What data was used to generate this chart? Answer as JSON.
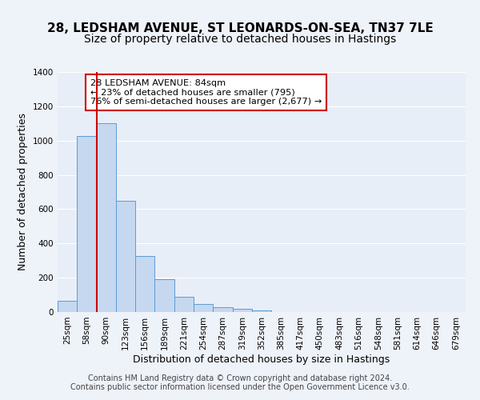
{
  "title_line1": "28, LEDSHAM AVENUE, ST LEONARDS-ON-SEA, TN37 7LE",
  "title_line2": "Size of property relative to detached houses in Hastings",
  "xlabel": "Distribution of detached houses by size in Hastings",
  "ylabel": "Number of detached properties",
  "bar_values": [
    65,
    1025,
    1100,
    650,
    325,
    190,
    90,
    45,
    30,
    20,
    10,
    0,
    0,
    0,
    0,
    0,
    0,
    0,
    0,
    0,
    0
  ],
  "categories": [
    "25sqm",
    "58sqm",
    "90sqm",
    "123sqm",
    "156sqm",
    "189sqm",
    "221sqm",
    "254sqm",
    "287sqm",
    "319sqm",
    "352sqm",
    "385sqm",
    "417sqm",
    "450sqm",
    "483sqm",
    "516sqm",
    "548sqm",
    "581sqm",
    "614sqm",
    "646sqm",
    "679sqm"
  ],
  "bar_color": "#c5d8f0",
  "bar_edge_color": "#5b9bd5",
  "vline_x": 1.5,
  "vline_color": "#cc0000",
  "annotation_line1": "28 LEDSHAM AVENUE: 84sqm",
  "annotation_line2": "← 23% of detached houses are smaller (795)",
  "annotation_line3": "76% of semi-detached houses are larger (2,677) →",
  "annotation_box_color": "#cc0000",
  "ylim_min": 0,
  "ylim_max": 1400,
  "yticks": [
    0,
    200,
    400,
    600,
    800,
    1000,
    1200,
    1400
  ],
  "footer_line1": "Contains HM Land Registry data © Crown copyright and database right 2024.",
  "footer_line2": "Contains public sector information licensed under the Open Government Licence v3.0.",
  "background_color": "#eef2f9",
  "plot_bg_color": "#e8eef7",
  "grid_color": "#ffffff",
  "title_fontsize": 11,
  "subtitle_fontsize": 10,
  "axis_label_fontsize": 9,
  "tick_fontsize": 7.5,
  "footer_fontsize": 7
}
